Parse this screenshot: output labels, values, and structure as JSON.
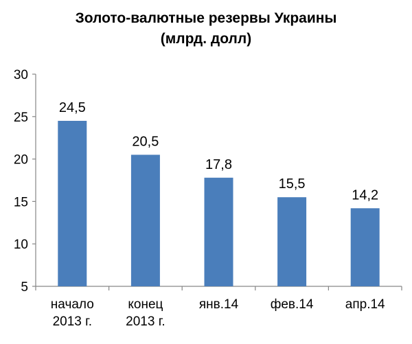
{
  "chart_data": {
    "type": "bar",
    "title_lines": [
      "Золото-валютные резервы Украины",
      "(млрд. долл)"
    ],
    "categories": [
      [
        "начало",
        "2013 г."
      ],
      [
        "конец",
        "2013 г."
      ],
      [
        "янв.14"
      ],
      [
        "фев.14"
      ],
      [
        "апр.14"
      ]
    ],
    "values": [
      24.5,
      20.5,
      17.8,
      15.5,
      14.2
    ],
    "value_labels": [
      "24,5",
      "20,5",
      "17,8",
      "15,5",
      "14,2"
    ],
    "ylim": [
      5,
      30
    ],
    "yticks": [
      5,
      10,
      15,
      20,
      25,
      30
    ],
    "xlabel": "",
    "ylabel": "",
    "bar_color": "#4a7ebb",
    "grid": false,
    "legend": false
  }
}
